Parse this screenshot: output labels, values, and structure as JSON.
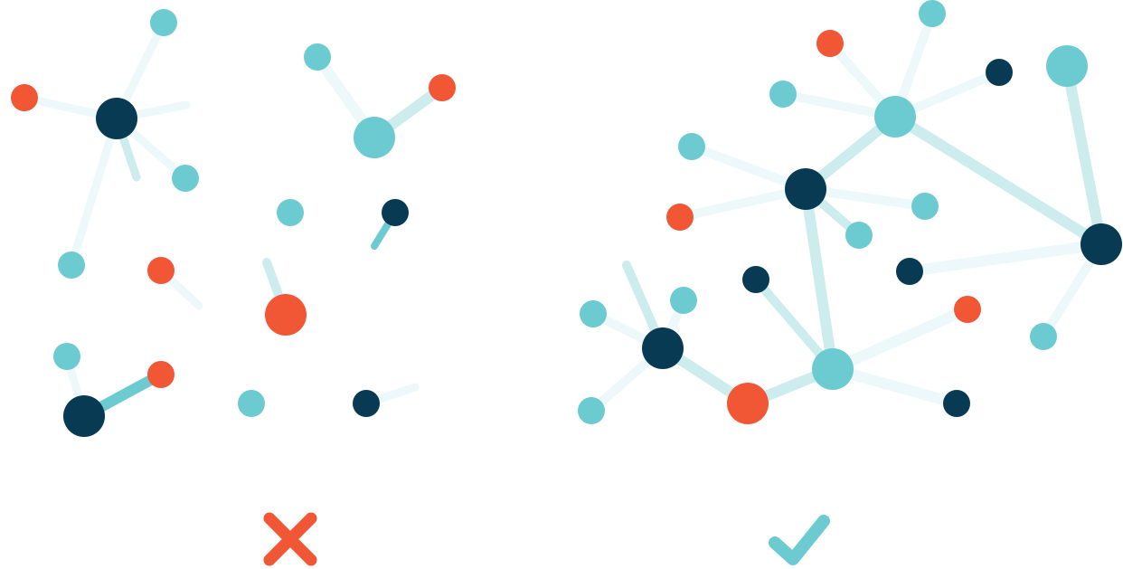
{
  "colors": {
    "navy": "#083a54",
    "teal": "#6ccbd1",
    "orange": "#f15635",
    "edge_light": "#ecf8f9",
    "edge_mid": "#cdeced",
    "edge_strong": "#6ccbd1"
  },
  "panels": [
    {
      "id": "disconnected",
      "verdict": "wrong",
      "verdict_icon": "cross-icon",
      "verdict_color": "#f15635"
    },
    {
      "id": "connected",
      "verdict": "right",
      "verdict_icon": "checkmark-icon",
      "verdict_color": "#6ccbd1"
    }
  ]
}
